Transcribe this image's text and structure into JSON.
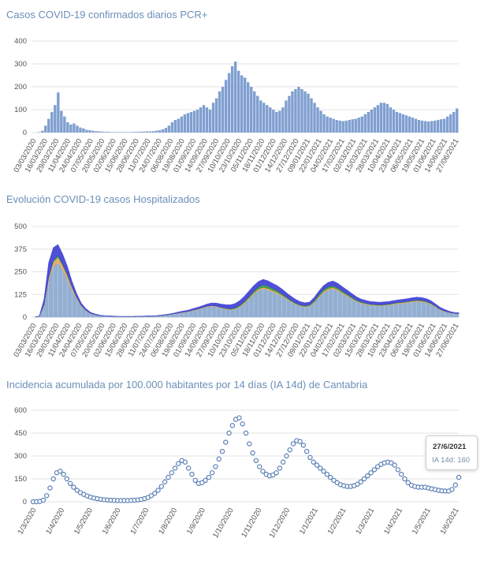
{
  "chart_data": [
    {
      "type": "bar",
      "title": "Casos COVID-19 confirmados diarios PCR+",
      "ylim": [
        0,
        400
      ],
      "yticks": [
        0,
        100,
        200,
        300,
        400
      ],
      "xticks": [
        "03/03/2020",
        "16/03/2020",
        "29/03/2020",
        "11/04/2020",
        "24/04/2020",
        "07/05/2020",
        "20/05/2020",
        "02/06/2020",
        "15/06/2020",
        "28/06/2020",
        "11/07/2020",
        "24/07/2020",
        "06/08/2020",
        "19/08/2020",
        "01/09/2020",
        "14/09/2020",
        "27/09/2020",
        "10/10/2020",
        "23/10/2020",
        "05/11/2020",
        "18/11/2020",
        "01/12/2020",
        "14/12/2020",
        "27/12/2020",
        "09/01/2021",
        "22/01/2021",
        "04/02/2021",
        "17/02/2021",
        "02/03/2021",
        "15/03/2021",
        "28/03/2021",
        "10/04/2021",
        "23/04/2021",
        "06/05/2021",
        "19/05/2021",
        "01/06/2021",
        "14/06/2021",
        "27/06/2021"
      ],
      "series": [
        {
          "color": "#7f9fd0",
          "values": [
            0,
            0,
            2,
            8,
            30,
            60,
            90,
            120,
            175,
            95,
            70,
            45,
            35,
            40,
            30,
            22,
            18,
            12,
            10,
            8,
            6,
            5,
            4,
            3,
            3,
            2,
            2,
            2,
            2,
            2,
            2,
            2,
            3,
            3,
            4,
            4,
            5,
            5,
            6,
            8,
            10,
            14,
            20,
            30,
            45,
            55,
            60,
            70,
            80,
            85,
            90,
            95,
            100,
            110,
            120,
            110,
            100,
            130,
            150,
            180,
            200,
            230,
            260,
            290,
            310,
            270,
            250,
            240,
            220,
            200,
            180,
            160,
            140,
            130,
            120,
            110,
            100,
            90,
            95,
            110,
            140,
            160,
            180,
            190,
            200,
            190,
            180,
            170,
            150,
            130,
            110,
            95,
            80,
            70,
            65,
            60,
            55,
            52,
            50,
            52,
            55,
            58,
            60,
            65,
            70,
            80,
            90,
            100,
            110,
            120,
            130,
            130,
            125,
            110,
            100,
            90,
            85,
            80,
            75,
            70,
            65,
            60,
            55,
            52,
            50,
            48,
            50,
            52,
            55,
            58,
            60,
            70,
            80,
            90,
            105
          ]
        }
      ]
    },
    {
      "type": "area",
      "title": "Evolución COVID-19 casos  Hospitalizados",
      "ylim": [
        0,
        500
      ],
      "yticks": [
        0,
        125,
        250,
        375,
        500
      ],
      "xticks": [
        "03/03/2020",
        "16/03/2020",
        "29/03/2020",
        "11/04/2020",
        "24/04/2020",
        "07/05/2020",
        "20/05/2020",
        "02/06/2020",
        "15/06/2020",
        "28/06/2020",
        "11/07/2020",
        "24/07/2020",
        "06/08/2020",
        "19/08/2020",
        "01/09/2020",
        "14/09/2020",
        "27/09/2020",
        "10/10/2020",
        "23/10/2020",
        "05/11/2020",
        "18/11/2020",
        "01/12/2020",
        "14/12/2020",
        "27/12/2020",
        "09/01/2021",
        "22/01/2021",
        "04/02/2021",
        "17/02/2021",
        "02/03/2021",
        "15/03/2021",
        "28/03/2021",
        "10/04/2021",
        "23/04/2021",
        "06/05/2021",
        "19/05/2021",
        "01/06/2021",
        "14/06/2021",
        "27/06/2021"
      ],
      "series": [
        {
          "color": "#8aa9cf",
          "values": [
            0,
            5,
            60,
            200,
            280,
            300,
            260,
            210,
            150,
            100,
            60,
            35,
            20,
            12,
            8,
            6,
            5,
            4,
            3,
            3,
            3,
            3,
            4,
            4,
            5,
            5,
            6,
            8,
            10,
            14,
            18,
            22,
            26,
            30,
            36,
            42,
            50,
            56,
            60,
            56,
            50,
            44,
            40,
            44,
            56,
            76,
            100,
            126,
            146,
            156,
            150,
            140,
            130,
            116,
            100,
            84,
            70,
            60,
            56,
            60,
            80,
            110,
            136,
            150,
            156,
            146,
            130,
            116,
            100,
            86,
            76,
            70,
            66,
            64,
            62,
            64,
            66,
            70,
            74,
            76,
            80,
            84,
            86,
            84,
            80,
            70,
            56,
            40,
            30,
            24,
            20,
            18
          ]
        },
        {
          "color": "#e8a860",
          "values": [
            0,
            0,
            5,
            15,
            25,
            30,
            25,
            20,
            14,
            8,
            4,
            2,
            1,
            1,
            0,
            0,
            0,
            0,
            0,
            0,
            0,
            0,
            0,
            0,
            0,
            0,
            0,
            1,
            1,
            1,
            1,
            2,
            2,
            2,
            3,
            3,
            3,
            4,
            4,
            4,
            3,
            3,
            3,
            3,
            4,
            5,
            6,
            7,
            8,
            8,
            8,
            7,
            7,
            6,
            5,
            4,
            4,
            3,
            3,
            3,
            4,
            5,
            6,
            7,
            7,
            7,
            6,
            5,
            5,
            4,
            4,
            4,
            3,
            3,
            3,
            3,
            3,
            4,
            4,
            4,
            4,
            4,
            5,
            5,
            4,
            4,
            3,
            2,
            2,
            1,
            1,
            1
          ]
        },
        {
          "color": "#3a9a3a",
          "values": [
            0,
            0,
            2,
            5,
            8,
            10,
            8,
            6,
            4,
            2,
            1,
            1,
            0,
            0,
            0,
            0,
            0,
            0,
            0,
            0,
            0,
            0,
            0,
            0,
            0,
            0,
            0,
            0,
            0,
            0,
            0,
            0,
            0,
            0,
            0,
            0,
            0,
            0,
            0,
            1,
            1,
            2,
            3,
            4,
            5,
            6,
            8,
            10,
            12,
            14,
            14,
            12,
            10,
            8,
            6,
            5,
            4,
            4,
            4,
            5,
            7,
            9,
            10,
            11,
            10,
            9,
            8,
            7,
            6,
            5,
            4,
            4,
            3,
            3,
            3,
            3,
            3,
            3,
            3,
            3,
            3,
            3,
            3,
            3,
            3,
            3,
            2,
            2,
            2,
            1,
            1,
            1
          ]
        },
        {
          "color": "#3f3fd6",
          "values": [
            0,
            2,
            30,
            80,
            70,
            60,
            55,
            45,
            30,
            20,
            12,
            8,
            5,
            4,
            3,
            2,
            2,
            2,
            1,
            1,
            1,
            1,
            1,
            1,
            2,
            2,
            2,
            2,
            3,
            3,
            4,
            5,
            6,
            7,
            8,
            9,
            10,
            12,
            14,
            16,
            18,
            20,
            22,
            24,
            26,
            28,
            30,
            30,
            30,
            30,
            29,
            28,
            27,
            26,
            24,
            22,
            20,
            18,
            16,
            15,
            18,
            20,
            22,
            24,
            26,
            25,
            24,
            22,
            20,
            18,
            16,
            15,
            14,
            14,
            14,
            14,
            14,
            14,
            14,
            15,
            15,
            16,
            16,
            16,
            15,
            14,
            12,
            10,
            8,
            6,
            4,
            4
          ]
        }
      ]
    },
    {
      "type": "scatter",
      "title": "Incidencia acumulada por 100.000 habitantes por 14 días (IA 14d) de Cantabria",
      "ylim": [
        0,
        600
      ],
      "yticks": [
        0,
        150,
        300,
        450,
        600
      ],
      "xticks": [
        "1/3/2020",
        "1/4/2020",
        "1/5/2020",
        "1/6/2020",
        "1/7/2020",
        "1/8/2020",
        "1/9/2020",
        "1/10/2020",
        "1/11/2020",
        "1/12/2020",
        "1/1/2021",
        "1/2/2021",
        "1/3/2021",
        "1/4/2021",
        "1/5/2021",
        "1/6/2021"
      ],
      "series": [
        {
          "color": "#5b7fb5",
          "values": [
            0,
            0,
            2,
            10,
            40,
            90,
            150,
            190,
            200,
            180,
            150,
            120,
            95,
            75,
            60,
            48,
            38,
            30,
            24,
            20,
            16,
            13,
            11,
            10,
            9,
            8,
            8,
            8,
            8,
            9,
            10,
            12,
            15,
            20,
            28,
            40,
            55,
            75,
            100,
            130,
            160,
            190,
            220,
            250,
            270,
            260,
            220,
            180,
            140,
            120,
            125,
            140,
            160,
            190,
            230,
            280,
            330,
            390,
            450,
            500,
            540,
            550,
            510,
            450,
            380,
            320,
            270,
            230,
            200,
            180,
            170,
            175,
            190,
            220,
            260,
            300,
            340,
            380,
            400,
            395,
            370,
            330,
            290,
            260,
            240,
            220,
            200,
            180,
            160,
            140,
            125,
            112,
            105,
            100,
            100,
            105,
            115,
            130,
            150,
            170,
            190,
            210,
            230,
            245,
            255,
            260,
            255,
            240,
            210,
            180,
            150,
            125,
            108,
            100,
            96,
            95,
            95,
            90,
            85,
            80,
            75,
            72,
            70,
            70,
            80,
            110,
            160
          ]
        }
      ],
      "tooltip": {
        "date": "27/6/2021",
        "label": "IA 14d: 160"
      }
    }
  ]
}
